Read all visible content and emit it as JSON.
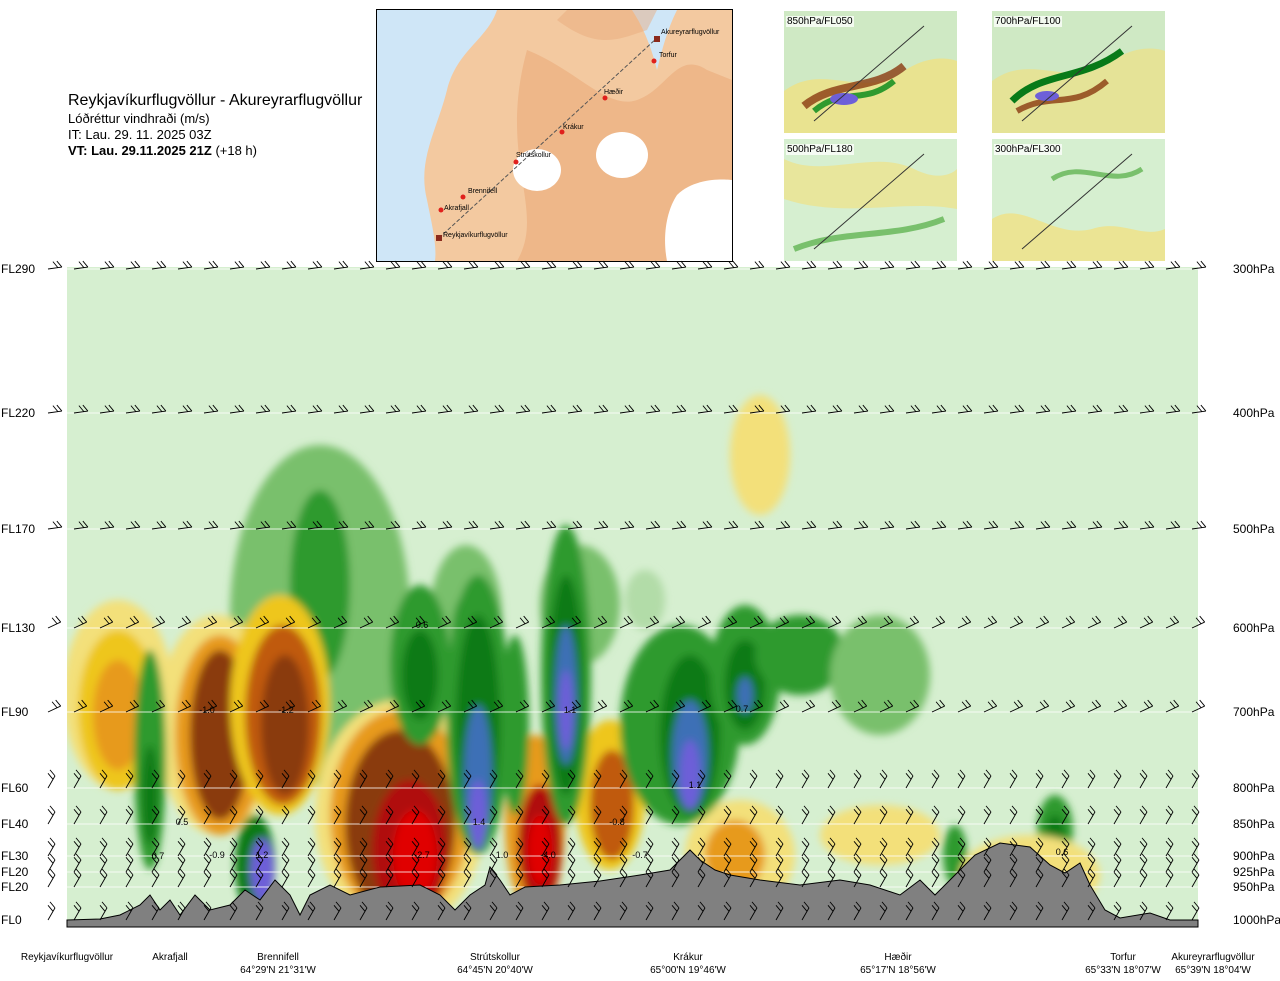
{
  "header": {
    "route": "Reykjavíkurflugvöllur - Akureyrarflugvöllur",
    "parameter": "Lóðréttur vindhraði (m/s)",
    "issue_time": "IT: Lau. 29. 11. 2025 03Z",
    "valid_time_bold": "VT: Lau. 29.11.2025 21Z",
    "valid_time_suffix": "(+18 h)"
  },
  "route_map": {
    "waypoints": [
      "Akureyrarflugvöllur",
      "Torfur",
      "Hæðir",
      "Krákur",
      "Strútskollur",
      "Brennifell",
      "Akrafjall",
      "Reykjavíkurflugvöllur"
    ],
    "colors": {
      "land": "#f3c9a0",
      "sea": "#cfe6f7",
      "glacier": "#ffffff",
      "route": "#555555",
      "waypoint": "#e0201c"
    }
  },
  "level_panels": [
    {
      "label": "850hPa/FL050"
    },
    {
      "label": "700hPa/FL100"
    },
    {
      "label": "500hPa/FL180"
    },
    {
      "label": "300hPa/FL300"
    }
  ],
  "chart_data": {
    "type": "heatmap",
    "title": "Lóðréttur vindhraði (m/s)",
    "left_axis_labels": [
      "FL290",
      "FL220",
      "FL170",
      "FL130",
      "FL90",
      "FL60",
      "FL40",
      "FL30",
      "FL20",
      "FL20",
      "FL0"
    ],
    "right_axis_labels": [
      "300hPa",
      "400hPa",
      "500hPa",
      "600hPa",
      "700hPa",
      "800hPa",
      "850hPa",
      "900hPa",
      "925hPa",
      "950hPa",
      "1000hPa"
    ],
    "pressure_levels_hPa": [
      300,
      400,
      500,
      600,
      700,
      800,
      850,
      900,
      925,
      950,
      1000
    ],
    "locations": [
      {
        "name": "Reykjavíkurflugvöllur",
        "coord": ""
      },
      {
        "name": "Akrafjall",
        "coord": ""
      },
      {
        "name": "Brennifell",
        "coord": "64°29'N 21°31'W"
      },
      {
        "name": "Strútskollur",
        "coord": "64°45'N 20°40'W"
      },
      {
        "name": "Krákur",
        "coord": "65°00'N 19°46'W"
      },
      {
        "name": "Hæðir",
        "coord": "65°17'N 18°56'W"
      },
      {
        "name": "Torfur",
        "coord": "65°33'N 18°07'W"
      },
      {
        "name": "Akureyrarflugvöllur",
        "coord": "65°39'N 18°04'W"
      }
    ],
    "contour_labels": [
      "0.7",
      "0.5",
      "-1.0",
      "-0.9",
      "-1.2",
      "1.2",
      "-2.7",
      "0.6",
      "1.4",
      "1.0",
      "1.1",
      "-4.0",
      "-0.8",
      "-0.7",
      "1.1",
      "0.7",
      "0.6"
    ],
    "color_scale": {
      "negative": [
        "#f7f0c0",
        "#f3e07a",
        "#eec61e",
        "#e79a1e",
        "#c05a10",
        "#8a3a10",
        "#b01010",
        "#e00000"
      ],
      "positive": [
        "#d6efd0",
        "#b2dca8",
        "#79c06c",
        "#2f9a2f",
        "#087a18",
        "#3d6fb6",
        "#6d5fd8"
      ]
    }
  }
}
